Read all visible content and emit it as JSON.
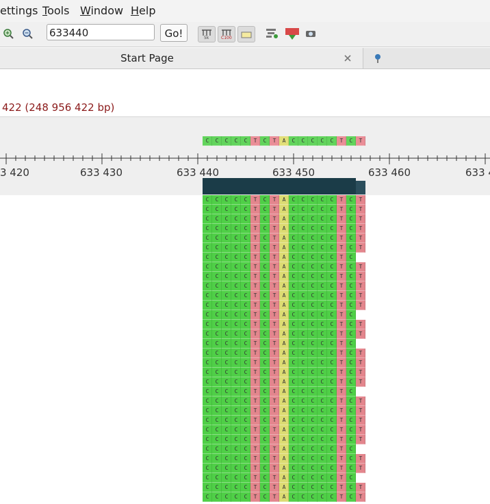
{
  "menu": [
    "ettings",
    "Tools",
    "Window",
    "Help"
  ],
  "toolbar": {
    "position": "633440",
    "go_button": "Go!",
    "icon_labels": [
      "5k",
      "C100"
    ]
  },
  "tab": {
    "title": "Start Page"
  },
  "sequence_info": "422 (248 956 422 bp)",
  "reference": "CCCCCTCTACCCCCTCT",
  "ruler_labels": [
    "3 420",
    "633 430",
    "633 440",
    "633 450",
    "633 460",
    "633 4"
  ],
  "reads": [
    "CCCCCTCTACCCCCTCT",
    "CCCCCTCTACCCCCTCT",
    "CCCCCTCTACCCCCTCT",
    "CCCCCTCTACCCCCTCT",
    "CCCCCTCTACCCCCTCT",
    "CCCCCTCTACCCCCTCT",
    "CCCCCTCTACCCCCTC",
    "CCCCCTCTACCCCCTCT",
    "CCCCCTCTACCCCCTCT",
    "CCCCCTCTACCCCCTCT",
    "CCCCCTCTACCCCCTCT",
    "CCCCCTCTACCCCCTCT",
    "CCCCCTCTACCCCCTC",
    "CCCCCTCTACCCCCTCT",
    "CCCCCTCTACCCCCTCT",
    "CCCCCTCTACCCCCTC",
    "CCCCCTCTACCCCCTCT",
    "CCCCCTCTACCCCCTCT",
    "CCCCCTCTACCCCCTCT",
    "CCCCCTCTACCCCCTCT",
    "CCCCCTCTACCCCCTC",
    "CCCCCTCTACCCCCTCT",
    "CCCCCTCTACCCCCTCT",
    "CCCCCTCTACCCCCTCT",
    "CCCCCTCTACCCCCTCT",
    "CCCCCTCTACCCCCTCT",
    "CCCCCTCTACCCCCTC",
    "CCCCCTCTACCCCCTCT",
    "CCCCCTCTACCCCCTCT",
    "CCCCCTCTACCCCCTC",
    "CCCCCTCTACCCCCTCT",
    "CCCCCTCTACCCCCTCT"
  ]
}
